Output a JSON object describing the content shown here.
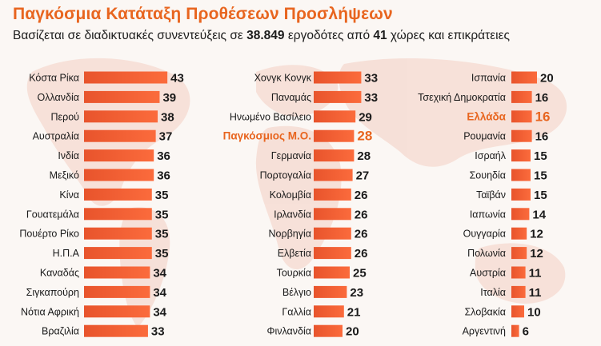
{
  "header": {
    "title": "Παγκόσμια Κατάταξη Προθέσεων Προσλήψεων",
    "subtitle_pre": "Βασίζεται σε διαδικτυακές συνεντεύξεις σε ",
    "subtitle_employers": "38.849",
    "subtitle_mid": " εργοδότες από ",
    "subtitle_countries": "41",
    "subtitle_post": " χώρες και επικράτειες"
  },
  "colors": {
    "title": "#e8651f",
    "bar_start": "#e8542c",
    "bar_end": "#fb6b3c",
    "highlight": "#e8651f"
  },
  "chart_data": {
    "type": "bar",
    "orientation": "horizontal",
    "xlim": [
      0,
      45
    ],
    "columns": [
      {
        "categories": [
          "Κόστα Ρίκα",
          "Ολλανδία",
          "Περού",
          "Αυστραλία",
          "Ινδία",
          "Μεξικό",
          "Κίνα",
          "Γουατεμάλα",
          "Πουέρτο Ρίκο",
          "Η.Π.Α",
          "Καναδάς",
          "Σιγκαπούρη",
          "Νότια Αφρική",
          "Βραζιλία"
        ],
        "values": [
          43,
          39,
          38,
          37,
          36,
          36,
          35,
          35,
          35,
          35,
          34,
          34,
          34,
          33
        ]
      },
      {
        "categories": [
          "Χονγκ Κονγκ",
          "Παναμάς",
          "Ηνωμένο Βασίλειο",
          "Παγκόσμιος Μ.Ο.",
          "Γερμανία",
          "Πορτογαλία",
          "Κολομβία",
          "Ιρλανδία",
          "Νορβηγία",
          "Ελβετία",
          "Τουρκία",
          "Βέλγιο",
          "Γαλλία",
          "Φινλανδία"
        ],
        "values": [
          33,
          33,
          29,
          28,
          28,
          27,
          26,
          26,
          26,
          26,
          25,
          23,
          21,
          20
        ],
        "highlight": "Παγκόσμιος Μ.Ο."
      },
      {
        "categories": [
          "Ισπανία",
          "Τσεχική Δημοκρατία",
          "Ελλάδα",
          "Ρουμανία",
          "Ισραήλ",
          "Σουηδία",
          "Ταϊβάν",
          "Ιαπωνία",
          "Ουγγαρία",
          "Πολωνία",
          "Αυστρία",
          "Ιταλία",
          "Σλοβακία",
          "Αργεντινή"
        ],
        "values": [
          20,
          16,
          16,
          16,
          15,
          15,
          15,
          14,
          12,
          12,
          11,
          11,
          10,
          6
        ],
        "highlight": "Ελλάδα"
      }
    ]
  }
}
